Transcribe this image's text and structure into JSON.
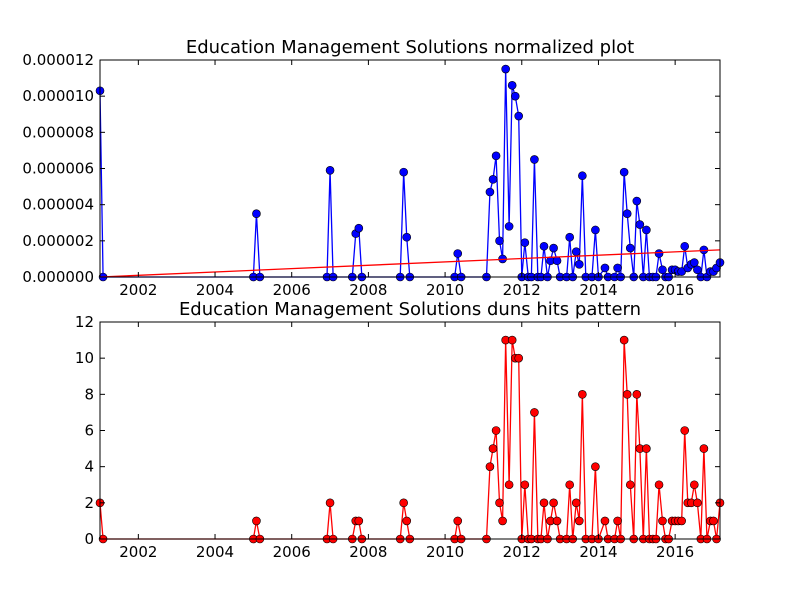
{
  "chart_data": [
    {
      "type": "line",
      "title": "Education Management Solutions normalized plot",
      "xlim": [
        2001.0,
        2017.17
      ],
      "ylim": [
        0,
        1.2e-05
      ],
      "x_ticks": [
        2002,
        2004,
        2006,
        2008,
        2010,
        2012,
        2014,
        2016
      ],
      "x_tick_labels": [
        "2002",
        "2004",
        "2006",
        "2008",
        "2010",
        "2012",
        "2014",
        "2016"
      ],
      "y_ticks": [
        0,
        2e-06,
        4e-06,
        6e-06,
        8e-06,
        1e-05,
        1.2e-05
      ],
      "y_tick_labels": [
        "0.000000",
        "0.000002",
        "0.000004",
        "0.000006",
        "0.000008",
        "0.000010",
        "0.000012"
      ],
      "series": [
        {
          "color": "#0000ff",
          "marker": "circle",
          "points": [
            [
              2001.0,
              1.03e-05
            ],
            [
              2001.08,
              0.0
            ],
            [
              2005.0,
              0.0
            ],
            [
              2005.08,
              3.5e-06
            ],
            [
              2005.17,
              0.0
            ],
            [
              2006.92,
              0.0
            ],
            [
              2007.0,
              5.9e-06
            ],
            [
              2007.08,
              0.0
            ],
            [
              2007.58,
              0.0
            ],
            [
              2007.67,
              2.4e-06
            ],
            [
              2007.75,
              2.7e-06
            ],
            [
              2007.83,
              0.0
            ],
            [
              2008.83,
              0.0
            ],
            [
              2008.92,
              5.8e-06
            ],
            [
              2009.0,
              2.2e-06
            ],
            [
              2009.08,
              0.0
            ],
            [
              2010.25,
              0.0
            ],
            [
              2010.33,
              1.3e-06
            ],
            [
              2010.42,
              0.0
            ],
            [
              2011.08,
              0.0
            ],
            [
              2011.17,
              4.7e-06
            ],
            [
              2011.25,
              5.4e-06
            ],
            [
              2011.33,
              6.7e-06
            ],
            [
              2011.42,
              2e-06
            ],
            [
              2011.5,
              1e-06
            ],
            [
              2011.58,
              1.15e-05
            ],
            [
              2011.67,
              2.8e-06
            ],
            [
              2011.75,
              1.06e-05
            ],
            [
              2011.83,
              1e-05
            ],
            [
              2011.92,
              8.9e-06
            ],
            [
              2012.0,
              0.0
            ],
            [
              2012.08,
              1.9e-06
            ],
            [
              2012.17,
              0.0
            ],
            [
              2012.25,
              0.0
            ],
            [
              2012.33,
              6.5e-06
            ],
            [
              2012.42,
              0.0
            ],
            [
              2012.5,
              0.0
            ],
            [
              2012.58,
              1.7e-06
            ],
            [
              2012.67,
              0.0
            ],
            [
              2012.75,
              9e-07
            ],
            [
              2012.83,
              1.6e-06
            ],
            [
              2012.92,
              9e-07
            ],
            [
              2013.0,
              0.0
            ],
            [
              2013.17,
              0.0
            ],
            [
              2013.25,
              2.2e-06
            ],
            [
              2013.33,
              0.0
            ],
            [
              2013.42,
              1.4e-06
            ],
            [
              2013.5,
              7e-07
            ],
            [
              2013.58,
              5.6e-06
            ],
            [
              2013.67,
              0.0
            ],
            [
              2013.83,
              0.0
            ],
            [
              2013.92,
              2.6e-06
            ],
            [
              2014.0,
              0.0
            ],
            [
              2014.17,
              5e-07
            ],
            [
              2014.25,
              0.0
            ],
            [
              2014.42,
              0.0
            ],
            [
              2014.5,
              5e-07
            ],
            [
              2014.58,
              0.0
            ],
            [
              2014.67,
              5.8e-06
            ],
            [
              2014.75,
              3.5e-06
            ],
            [
              2014.83,
              1.6e-06
            ],
            [
              2014.92,
              0.0
            ],
            [
              2015.0,
              4.2e-06
            ],
            [
              2015.08,
              2.9e-06
            ],
            [
              2015.17,
              0.0
            ],
            [
              2015.25,
              2.6e-06
            ],
            [
              2015.33,
              0.0
            ],
            [
              2015.42,
              0.0
            ],
            [
              2015.5,
              0.0
            ],
            [
              2015.58,
              1.3e-06
            ],
            [
              2015.67,
              4e-07
            ],
            [
              2015.75,
              0.0
            ],
            [
              2015.83,
              0.0
            ],
            [
              2015.92,
              4e-07
            ],
            [
              2016.0,
              4e-07
            ],
            [
              2016.08,
              3e-07
            ],
            [
              2016.17,
              3e-07
            ],
            [
              2016.25,
              1.7e-06
            ],
            [
              2016.33,
              5e-07
            ],
            [
              2016.42,
              7e-07
            ],
            [
              2016.5,
              8e-07
            ],
            [
              2016.58,
              4e-07
            ],
            [
              2016.67,
              0.0
            ],
            [
              2016.75,
              1.5e-06
            ],
            [
              2016.83,
              0.0
            ],
            [
              2016.92,
              3e-07
            ],
            [
              2017.0,
              3e-07
            ],
            [
              2017.08,
              5e-07
            ],
            [
              2017.17,
              8e-07
            ]
          ]
        },
        {
          "color": "#ff0000",
          "marker": "none",
          "points": [
            [
              2001.0,
              0.0
            ],
            [
              2017.17,
              1.5e-06
            ]
          ]
        }
      ]
    },
    {
      "type": "line",
      "title": "Education Management Solutions duns hits pattern",
      "xlim": [
        2001.0,
        2017.17
      ],
      "ylim": [
        0,
        12
      ],
      "x_ticks": [
        2002,
        2004,
        2006,
        2008,
        2010,
        2012,
        2014,
        2016
      ],
      "x_tick_labels": [
        "2002",
        "2004",
        "2006",
        "2008",
        "2010",
        "2012",
        "2014",
        "2016"
      ],
      "y_ticks": [
        0,
        2,
        4,
        6,
        8,
        10,
        12
      ],
      "y_tick_labels": [
        "0",
        "2",
        "4",
        "6",
        "8",
        "10",
        "12"
      ],
      "series": [
        {
          "color": "#ff0000",
          "marker": "circle",
          "points": [
            [
              2001.0,
              2
            ],
            [
              2001.08,
              0
            ],
            [
              2005.0,
              0
            ],
            [
              2005.08,
              1
            ],
            [
              2005.17,
              0
            ],
            [
              2006.92,
              0
            ],
            [
              2007.0,
              2
            ],
            [
              2007.08,
              0
            ],
            [
              2007.58,
              0
            ],
            [
              2007.67,
              1
            ],
            [
              2007.75,
              1
            ],
            [
              2007.83,
              0
            ],
            [
              2008.83,
              0
            ],
            [
              2008.92,
              2
            ],
            [
              2009.0,
              1
            ],
            [
              2009.08,
              0
            ],
            [
              2010.25,
              0
            ],
            [
              2010.33,
              1
            ],
            [
              2010.42,
              0
            ],
            [
              2011.08,
              0
            ],
            [
              2011.17,
              4
            ],
            [
              2011.25,
              5
            ],
            [
              2011.33,
              6
            ],
            [
              2011.42,
              2
            ],
            [
              2011.5,
              1
            ],
            [
              2011.58,
              11
            ],
            [
              2011.67,
              3
            ],
            [
              2011.75,
              11
            ],
            [
              2011.83,
              10
            ],
            [
              2011.92,
              10
            ],
            [
              2012.0,
              0
            ],
            [
              2012.08,
              3
            ],
            [
              2012.17,
              0
            ],
            [
              2012.25,
              0
            ],
            [
              2012.33,
              7
            ],
            [
              2012.42,
              0
            ],
            [
              2012.5,
              0
            ],
            [
              2012.58,
              2
            ],
            [
              2012.67,
              0
            ],
            [
              2012.75,
              1
            ],
            [
              2012.83,
              2
            ],
            [
              2012.92,
              1
            ],
            [
              2013.0,
              0
            ],
            [
              2013.17,
              0
            ],
            [
              2013.25,
              3
            ],
            [
              2013.33,
              0
            ],
            [
              2013.42,
              2
            ],
            [
              2013.5,
              1
            ],
            [
              2013.58,
              8
            ],
            [
              2013.67,
              0
            ],
            [
              2013.83,
              0
            ],
            [
              2013.92,
              4
            ],
            [
              2014.0,
              0
            ],
            [
              2014.17,
              1
            ],
            [
              2014.25,
              0
            ],
            [
              2014.42,
              0
            ],
            [
              2014.5,
              1
            ],
            [
              2014.58,
              0
            ],
            [
              2014.67,
              11
            ],
            [
              2014.75,
              8
            ],
            [
              2014.83,
              3
            ],
            [
              2014.92,
              0
            ],
            [
              2015.0,
              8
            ],
            [
              2015.08,
              5
            ],
            [
              2015.17,
              0
            ],
            [
              2015.25,
              5
            ],
            [
              2015.33,
              0
            ],
            [
              2015.42,
              0
            ],
            [
              2015.5,
              0
            ],
            [
              2015.58,
              3
            ],
            [
              2015.67,
              1
            ],
            [
              2015.75,
              0
            ],
            [
              2015.83,
              0
            ],
            [
              2015.92,
              1
            ],
            [
              2016.0,
              1
            ],
            [
              2016.08,
              1
            ],
            [
              2016.17,
              1
            ],
            [
              2016.25,
              6
            ],
            [
              2016.33,
              2
            ],
            [
              2016.42,
              2
            ],
            [
              2016.5,
              3
            ],
            [
              2016.58,
              2
            ],
            [
              2016.67,
              0
            ],
            [
              2016.75,
              5
            ],
            [
              2016.83,
              0
            ],
            [
              2016.92,
              1
            ],
            [
              2017.0,
              1
            ],
            [
              2017.08,
              0
            ],
            [
              2017.17,
              2
            ]
          ]
        }
      ]
    }
  ]
}
